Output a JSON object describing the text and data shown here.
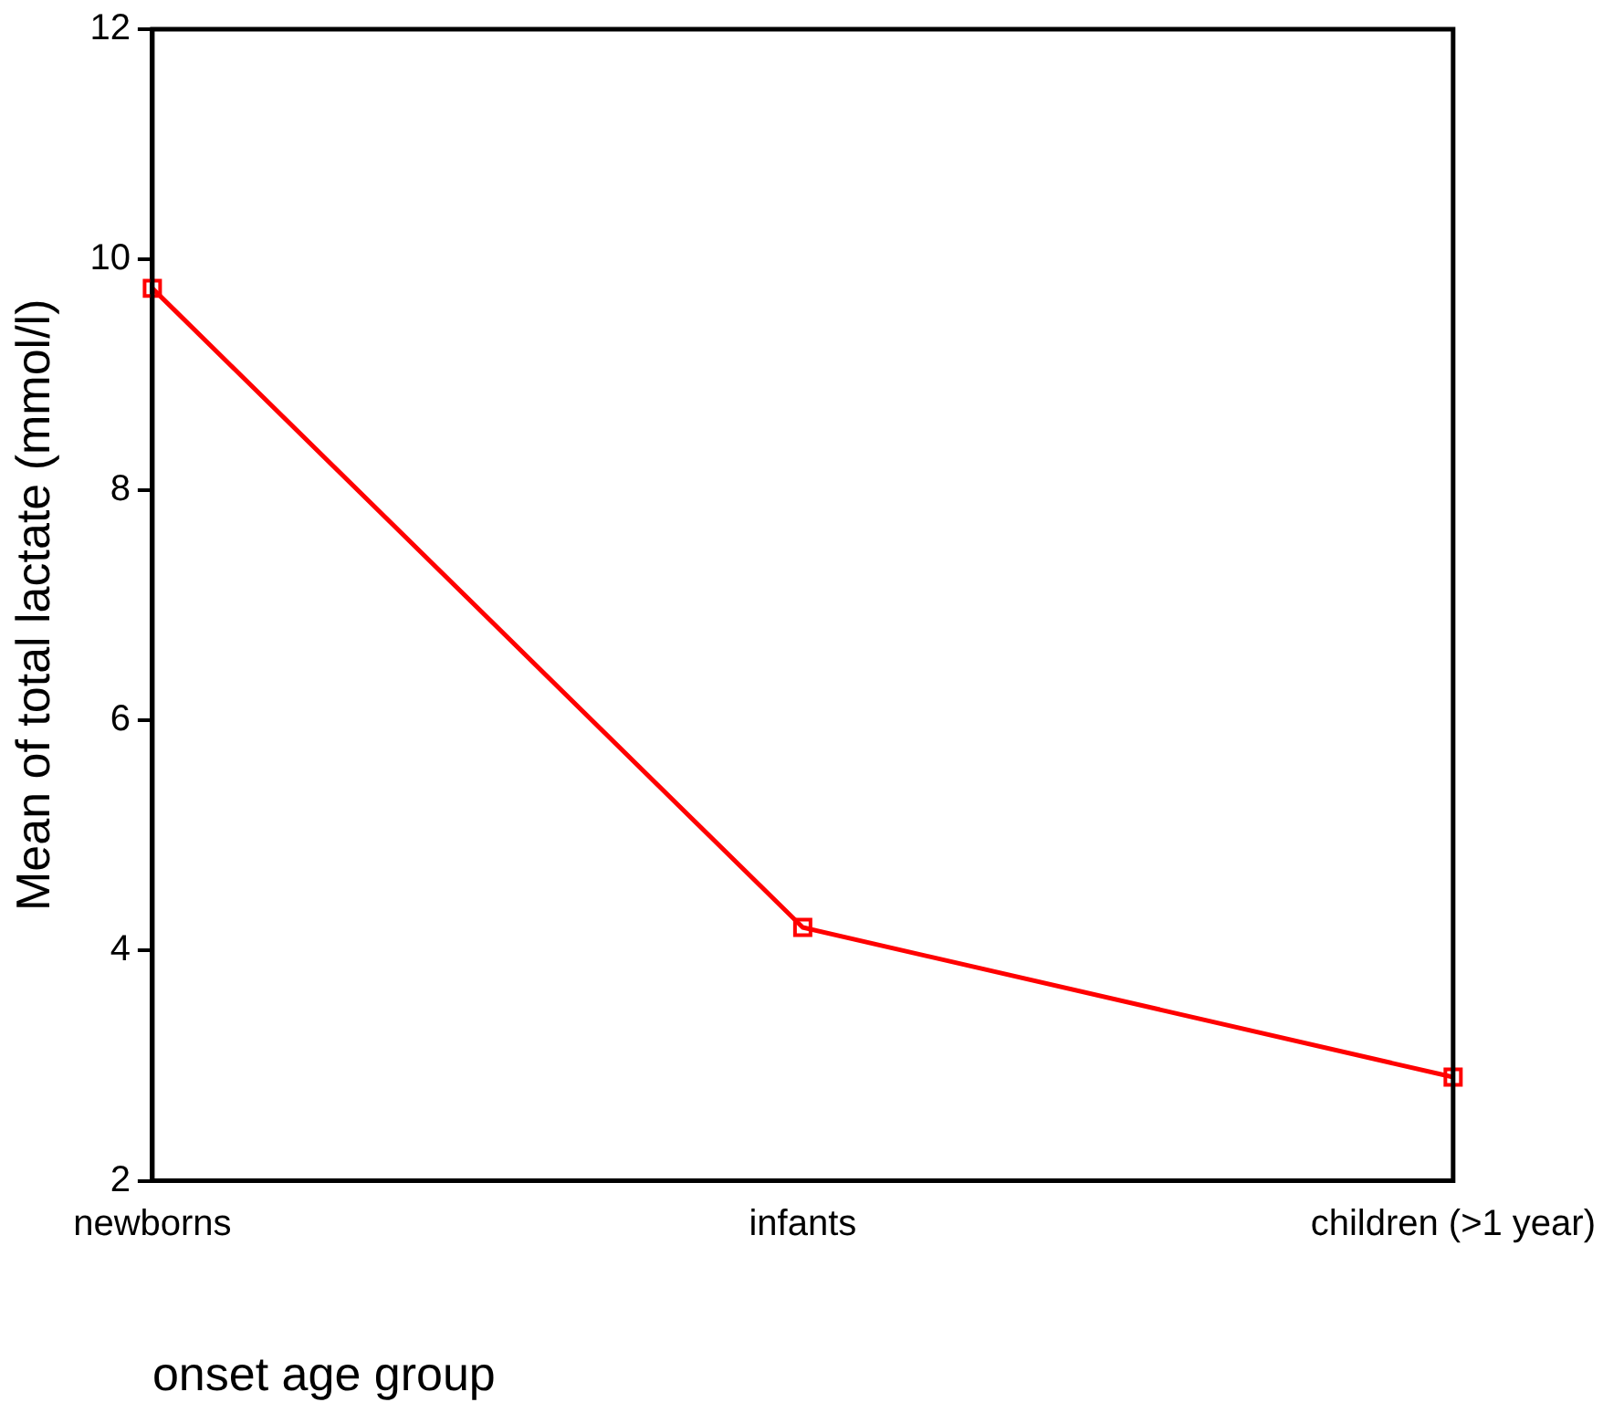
{
  "chart_data": {
    "type": "line",
    "xlabel": "onset age group",
    "ylabel": "Mean of total lactate (mmol/l)",
    "categories": [
      "newborns",
      "infants",
      "children (>1 year)"
    ],
    "series": [
      {
        "color": "#ff0000",
        "values": [
          9.75,
          4.2,
          2.9
        ]
      }
    ],
    "ylim": [
      2,
      12
    ],
    "yticks": [
      2,
      4,
      6,
      8,
      10,
      12
    ],
    "grid": false,
    "legend": false,
    "marker": "square",
    "line_style": "solid"
  }
}
